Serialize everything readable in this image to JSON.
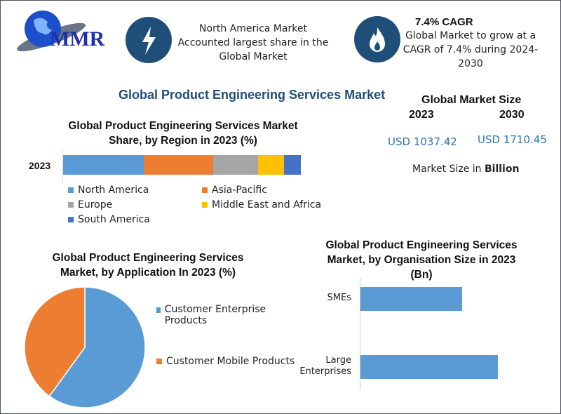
{
  "logo": {
    "text": "MMR"
  },
  "header": {
    "card1": {
      "icon": "lightning-icon",
      "text_lines": [
        "North America Market",
        "Accounted largest share in the",
        "Global Market"
      ]
    },
    "card2": {
      "icon": "flame-icon",
      "title": "7.4% CAGR",
      "text_lines": [
        "Global Market to grow at a",
        "CAGR of 7.4% during 2024-",
        "2030"
      ]
    }
  },
  "main_title": "Global Product Engineering Services Market",
  "market_size": {
    "title": "Global Market Size",
    "year1": "2023",
    "year2": "2030",
    "value1": "USD 1037.42",
    "value2": "USD 1710.45",
    "note_prefix": "Market Size in ",
    "note_bold": "Billion"
  },
  "colors": {
    "accent": "#1f4e79",
    "value_blue": "#2e75b6"
  },
  "chart_data": [
    {
      "type": "bar",
      "stacked": true,
      "orientation": "horizontal",
      "title": "Global Product Engineering Services  Market Share, by Region in 2023 (%)",
      "categories": [
        "2023"
      ],
      "series": [
        {
          "name": "North America",
          "values": [
            34
          ],
          "color": "#5b9bd5"
        },
        {
          "name": "Asia-Pacific",
          "values": [
            29
          ],
          "color": "#ed7d31"
        },
        {
          "name": "Europe",
          "values": [
            19
          ],
          "color": "#a5a5a5"
        },
        {
          "name": "Middle East and Africa",
          "values": [
            11
          ],
          "color": "#ffc000"
        },
        {
          "name": "South America",
          "values": [
            7
          ],
          "color": "#4472c4"
        }
      ],
      "legend": "bottom"
    },
    {
      "type": "pie",
      "title": "Global Product Engineering Services Market, by Application In 2023 (%)",
      "slices": [
        {
          "name": "Customer Enterprise Products",
          "value": 60,
          "color": "#5b9bd5"
        },
        {
          "name": "Customer Mobile Products",
          "value": 40,
          "color": "#ed7d31"
        }
      ],
      "legend": "right"
    },
    {
      "type": "bar",
      "orientation": "horizontal",
      "title": "Global Product Engineering Services Market, by Organisation Size in 2023 (Bn)",
      "categories": [
        "SMEs",
        "Large Enterprises"
      ],
      "values": [
        0.74,
        1.0
      ],
      "color": "#5b9bd5"
    }
  ]
}
